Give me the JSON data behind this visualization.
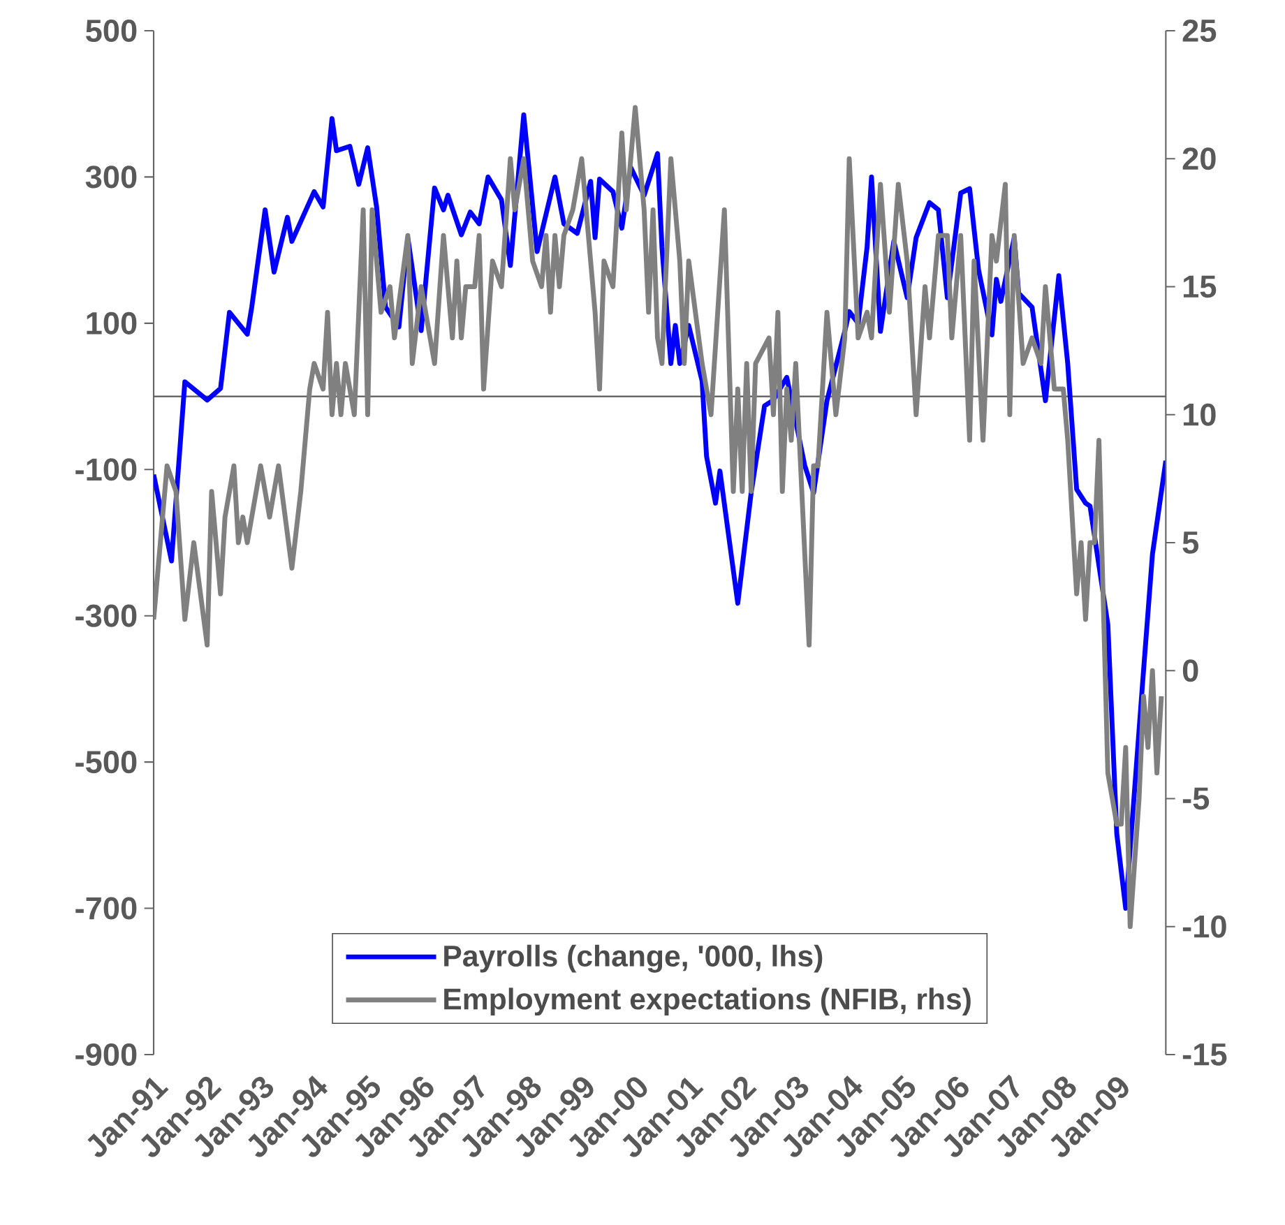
{
  "chart_data": {
    "type": "line",
    "xlim": [
      "1991-01",
      "2009-12"
    ],
    "xticks": [
      {
        "value": "1991-01",
        "label": "Jan-91"
      },
      {
        "value": "1992-01",
        "label": "Jan-92"
      },
      {
        "value": "1993-01",
        "label": "Jan-93"
      },
      {
        "value": "1994-01",
        "label": "Jan-94"
      },
      {
        "value": "1995-01",
        "label": "Jan-95"
      },
      {
        "value": "1996-01",
        "label": "Jan-96"
      },
      {
        "value": "1997-01",
        "label": "Jan-97"
      },
      {
        "value": "1998-01",
        "label": "Jan-98"
      },
      {
        "value": "1999-01",
        "label": "Jan-99"
      },
      {
        "value": "2000-01",
        "label": "Jan-00"
      },
      {
        "value": "2001-01",
        "label": "Jan-01"
      },
      {
        "value": "2002-01",
        "label": "Jan-02"
      },
      {
        "value": "2003-01",
        "label": "Jan-03"
      },
      {
        "value": "2004-01",
        "label": "Jan-04"
      },
      {
        "value": "2005-01",
        "label": "Jan-05"
      },
      {
        "value": "2006-01",
        "label": "Jan-06"
      },
      {
        "value": "2007-01",
        "label": "Jan-07"
      },
      {
        "value": "2008-01",
        "label": "Jan-08"
      },
      {
        "value": "2009-01",
        "label": "Jan-09"
      }
    ],
    "ylim": [
      -900,
      500
    ],
    "yticks": [
      -900,
      -700,
      -500,
      -300,
      -100,
      100,
      300,
      500
    ],
    "y2lim": [
      -15,
      25
    ],
    "y2ticks": [
      -15,
      -10,
      -5,
      0,
      5,
      10,
      15,
      20,
      25
    ],
    "ref_lines": [
      {
        "axis": "y",
        "value": 0,
        "color": "#595959"
      }
    ],
    "legend": "bottom",
    "marker": "none",
    "line_style": "solid",
    "grid": false,
    "series": [
      {
        "name": "Payrolls (change, '000, lhs)",
        "color": "#0000ff",
        "x": [
          "1991-01",
          "1991-05",
          "1991-08",
          "1992-01",
          "1992-04",
          "1992-06",
          "1992-10",
          "1992-11",
          "1993-02",
          "1993-04",
          "1993-07",
          "1993-08",
          "1994-01",
          "1994-03",
          "1994-05",
          "1994-06",
          "1994-09",
          "1994-11",
          "1995-01",
          "1995-03",
          "1995-05",
          "1995-08",
          "1995-10",
          "1996-01",
          "1996-04",
          "1996-06",
          "1996-07",
          "1996-10",
          "1996-12",
          "1997-02",
          "1997-04",
          "1997-07",
          "1997-09",
          "1997-12",
          "1998-03",
          "1998-07",
          "1998-09",
          "1998-12",
          "1999-03",
          "1999-04",
          "1999-05",
          "1999-08",
          "1999-10",
          "1999-12",
          "2000-03",
          "2000-06",
          "2000-07",
          "2000-09",
          "2000-10",
          "2000-11",
          "2001-01",
          "2001-04",
          "2001-05",
          "2001-07",
          "2001-08",
          "2001-12",
          "2002-03",
          "2002-06",
          "2002-08",
          "2002-11",
          "2003-03",
          "2003-05",
          "2003-08",
          "2003-12",
          "2004-01",
          "2004-03",
          "2004-05",
          "2004-06",
          "2004-08",
          "2004-11",
          "2005-02",
          "2005-04",
          "2005-07",
          "2005-09",
          "2005-11",
          "2006-02",
          "2006-04",
          "2006-06",
          "2006-09",
          "2006-10",
          "2006-11",
          "2007-02",
          "2007-03",
          "2007-06",
          "2007-09",
          "2007-12",
          "2008-02",
          "2008-04",
          "2008-06",
          "2008-07",
          "2008-11",
          "2009-01",
          "2009-03",
          "2009-07",
          "2009-09",
          "2009-12"
        ],
        "values": [
          -107,
          -225,
          20,
          -5,
          11,
          115,
          85,
          122,
          255,
          170,
          245,
          212,
          280,
          259,
          380,
          336,
          342,
          290,
          340,
          259,
          122,
          95,
          217,
          90,
          285,
          255,
          275,
          221,
          252,
          236,
          300,
          269,
          179,
          385,
          198,
          300,
          236,
          223,
          294,
          217,
          297,
          280,
          230,
          313,
          275,
          332,
          204,
          45,
          97,
          45,
          97,
          21,
          -82,
          -146,
          -102,
          -283,
          -132,
          -13,
          -5,
          26,
          -94,
          -132,
          -6,
          89,
          116,
          100,
          204,
          300,
          89,
          212,
          135,
          217,
          265,
          255,
          135,
          278,
          284,
          173,
          84,
          160,
          130,
          217,
          141,
          122,
          -6,
          165,
          45,
          -127,
          -146,
          -150,
          -312,
          -598,
          -700,
          -375,
          -216,
          -88
        ]
      },
      {
        "name": "Employment expectations (NFIB, rhs)",
        "color": "#808080",
        "axis": "y2",
        "x": [
          "1991-01",
          "1991-04",
          "1991-06",
          "1991-08",
          "1991-10",
          "1992-01",
          "1992-02",
          "1992-04",
          "1992-05",
          "1992-07",
          "1992-08",
          "1992-09",
          "1992-10",
          "1993-01",
          "1993-03",
          "1993-05",
          "1993-08",
          "1993-10",
          "1993-12",
          "1994-01",
          "1994-03",
          "1994-04",
          "1994-05",
          "1994-06",
          "1994-07",
          "1994-08",
          "1994-10",
          "1994-12",
          "1995-01",
          "1995-02",
          "1995-04",
          "1995-06",
          "1995-07",
          "1995-10",
          "1995-11",
          "1996-01",
          "1996-04",
          "1996-06",
          "1996-08",
          "1996-09",
          "1996-10",
          "1996-11",
          "1997-01",
          "1997-02",
          "1997-03",
          "1997-05",
          "1997-07",
          "1997-09",
          "1997-10",
          "1997-12",
          "1998-02",
          "1998-04",
          "1998-05",
          "1998-06",
          "1998-07",
          "1998-08",
          "1998-09",
          "1998-11",
          "1999-01",
          "1999-03",
          "1999-04",
          "1999-05",
          "1999-06",
          "1999-08",
          "1999-10",
          "1999-11",
          "2000-01",
          "2000-03",
          "2000-04",
          "2000-05",
          "2000-06",
          "2000-07",
          "2000-09",
          "2000-11",
          "2000-12",
          "2001-01",
          "2001-04",
          "2001-06",
          "2001-09",
          "2001-11",
          "2001-12",
          "2002-01",
          "2002-02",
          "2002-03",
          "2002-04",
          "2002-07",
          "2002-08",
          "2002-09",
          "2002-10",
          "2002-11",
          "2002-12",
          "2003-01",
          "2003-04",
          "2003-05",
          "2003-06",
          "2003-08",
          "2003-10",
          "2003-12",
          "2004-01",
          "2004-03",
          "2004-05",
          "2004-06",
          "2004-08",
          "2004-10",
          "2004-12",
          "2005-02",
          "2005-04",
          "2005-06",
          "2005-07",
          "2005-09",
          "2005-11",
          "2005-12",
          "2006-02",
          "2006-04",
          "2006-05",
          "2006-07",
          "2006-09",
          "2006-10",
          "2006-12",
          "2007-01",
          "2007-02",
          "2007-04",
          "2007-06",
          "2007-08",
          "2007-09",
          "2007-11",
          "2008-01",
          "2008-02",
          "2008-04",
          "2008-05",
          "2008-06",
          "2008-07",
          "2008-08",
          "2008-09",
          "2008-11",
          "2009-01",
          "2009-02",
          "2009-03",
          "2009-04",
          "2009-06",
          "2009-07",
          "2009-08",
          "2009-09",
          "2009-10",
          "2009-11"
        ],
        "values": [
          2,
          8,
          7,
          2,
          5,
          1,
          7,
          3,
          6,
          8,
          5,
          6,
          5,
          8,
          6,
          8,
          4,
          7,
          11,
          12,
          11,
          14,
          10,
          12,
          10,
          12,
          10,
          18,
          10,
          18,
          14,
          15,
          13,
          17,
          12,
          15,
          12,
          17,
          13,
          16,
          13,
          15,
          15,
          17,
          11,
          16,
          15,
          20,
          18,
          20,
          16,
          15,
          17,
          14,
          17,
          15,
          17,
          18,
          20,
          16,
          14,
          11,
          16,
          15,
          21,
          18,
          22,
          18,
          14,
          18,
          13,
          12,
          20,
          16,
          12,
          16,
          12,
          10,
          18,
          7,
          11,
          7,
          12,
          7,
          12,
          13,
          10,
          14,
          7,
          11,
          9,
          12,
          1,
          8,
          8,
          14,
          10,
          13,
          20,
          13,
          14,
          13,
          19,
          14,
          19,
          16,
          10,
          15,
          13,
          17,
          17,
          13,
          17,
          9,
          16,
          9,
          17,
          16,
          19,
          10,
          17,
          12,
          13,
          12,
          15,
          11,
          11,
          9,
          3,
          5,
          2,
          5,
          5,
          9,
          -4,
          -6,
          -6,
          -3,
          -10,
          -5,
          -1,
          -3,
          0,
          -4,
          -1
        ]
      }
    ]
  }
}
